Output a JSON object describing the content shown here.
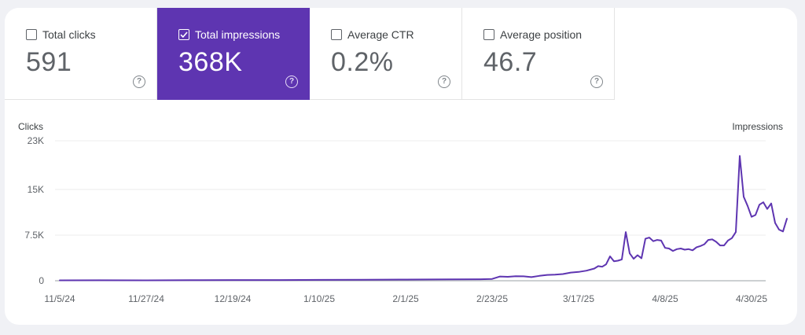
{
  "metrics": [
    {
      "label": "Total clicks",
      "value": "591",
      "checked": false
    },
    {
      "label": "Total impressions",
      "value": "368K",
      "checked": true
    },
    {
      "label": "Average CTR",
      "value": "0.2%",
      "checked": false
    },
    {
      "label": "Average position",
      "value": "46.7",
      "checked": false
    }
  ],
  "help_glyph": "?",
  "colors": {
    "accent": "#5e35b1",
    "line": "#5e35b1"
  },
  "chart_data": {
    "type": "line",
    "left_axis_label": "Clicks",
    "right_axis_label": "Impressions",
    "y_tick_labels": [
      "23K",
      "15K",
      "7.5K",
      "0"
    ],
    "ylim": [
      0,
      23000
    ],
    "x_tick_labels": [
      "11/5/24",
      "11/27/24",
      "12/19/24",
      "1/10/25",
      "2/1/25",
      "2/23/25",
      "3/17/25",
      "4/8/25",
      "4/30/25"
    ],
    "x_range": [
      "2024-11-05",
      "2025-05-04"
    ],
    "grid": true,
    "series": [
      {
        "values": [
          {
            "x": "2024-11-05",
            "y": 60
          },
          {
            "x": "2024-11-15",
            "y": 80
          },
          {
            "x": "2024-11-27",
            "y": 70
          },
          {
            "x": "2024-12-08",
            "y": 90
          },
          {
            "x": "2024-12-19",
            "y": 110
          },
          {
            "x": "2024-12-31",
            "y": 120
          },
          {
            "x": "2025-01-10",
            "y": 140
          },
          {
            "x": "2025-01-21",
            "y": 170
          },
          {
            "x": "2025-02-01",
            "y": 190
          },
          {
            "x": "2025-02-12",
            "y": 220
          },
          {
            "x": "2025-02-20",
            "y": 250
          },
          {
            "x": "2025-02-23",
            "y": 300
          },
          {
            "x": "2025-02-25",
            "y": 700
          },
          {
            "x": "2025-02-27",
            "y": 650
          },
          {
            "x": "2025-03-01",
            "y": 750
          },
          {
            "x": "2025-03-03",
            "y": 720
          },
          {
            "x": "2025-03-05",
            "y": 600
          },
          {
            "x": "2025-03-07",
            "y": 800
          },
          {
            "x": "2025-03-09",
            "y": 950
          },
          {
            "x": "2025-03-11",
            "y": 1000
          },
          {
            "x": "2025-03-13",
            "y": 1100
          },
          {
            "x": "2025-03-15",
            "y": 1350
          },
          {
            "x": "2025-03-17",
            "y": 1450
          },
          {
            "x": "2025-03-19",
            "y": 1650
          },
          {
            "x": "2025-03-21",
            "y": 2000
          },
          {
            "x": "2025-03-22",
            "y": 2400
          },
          {
            "x": "2025-03-23",
            "y": 2300
          },
          {
            "x": "2025-03-24",
            "y": 2700
          },
          {
            "x": "2025-03-25",
            "y": 4000
          },
          {
            "x": "2025-03-26",
            "y": 3200
          },
          {
            "x": "2025-03-27",
            "y": 3300
          },
          {
            "x": "2025-03-28",
            "y": 3500
          },
          {
            "x": "2025-03-29",
            "y": 8000
          },
          {
            "x": "2025-03-30",
            "y": 4500
          },
          {
            "x": "2025-03-31",
            "y": 3600
          },
          {
            "x": "2025-04-01",
            "y": 4200
          },
          {
            "x": "2025-04-02",
            "y": 3700
          },
          {
            "x": "2025-04-03",
            "y": 6900
          },
          {
            "x": "2025-04-04",
            "y": 7100
          },
          {
            "x": "2025-04-05",
            "y": 6500
          },
          {
            "x": "2025-04-06",
            "y": 6700
          },
          {
            "x": "2025-04-07",
            "y": 6600
          },
          {
            "x": "2025-04-08",
            "y": 5400
          },
          {
            "x": "2025-04-09",
            "y": 5300
          },
          {
            "x": "2025-04-10",
            "y": 4900
          },
          {
            "x": "2025-04-11",
            "y": 5200
          },
          {
            "x": "2025-04-12",
            "y": 5300
          },
          {
            "x": "2025-04-13",
            "y": 5100
          },
          {
            "x": "2025-04-14",
            "y": 5200
          },
          {
            "x": "2025-04-15",
            "y": 5000
          },
          {
            "x": "2025-04-16",
            "y": 5500
          },
          {
            "x": "2025-04-17",
            "y": 5700
          },
          {
            "x": "2025-04-18",
            "y": 6000
          },
          {
            "x": "2025-04-19",
            "y": 6700
          },
          {
            "x": "2025-04-20",
            "y": 6800
          },
          {
            "x": "2025-04-21",
            "y": 6400
          },
          {
            "x": "2025-04-22",
            "y": 5800
          },
          {
            "x": "2025-04-23",
            "y": 5800
          },
          {
            "x": "2025-04-24",
            "y": 6600
          },
          {
            "x": "2025-04-25",
            "y": 7000
          },
          {
            "x": "2025-04-26",
            "y": 8000
          },
          {
            "x": "2025-04-27",
            "y": 20500
          },
          {
            "x": "2025-04-28",
            "y": 13800
          },
          {
            "x": "2025-04-29",
            "y": 12300
          },
          {
            "x": "2025-04-30",
            "y": 10500
          },
          {
            "x": "2025-05-01",
            "y": 10800
          },
          {
            "x": "2025-05-02",
            "y": 12500
          },
          {
            "x": "2025-05-03",
            "y": 12900
          },
          {
            "x": "2025-05-04",
            "y": 11800
          },
          {
            "x": "2025-05-05",
            "y": 12700
          },
          {
            "x": "2025-05-06",
            "y": 9500
          },
          {
            "x": "2025-05-07",
            "y": 8400
          },
          {
            "x": "2025-05-08",
            "y": 8100
          },
          {
            "x": "2025-05-09",
            "y": 10200
          }
        ]
      }
    ]
  }
}
